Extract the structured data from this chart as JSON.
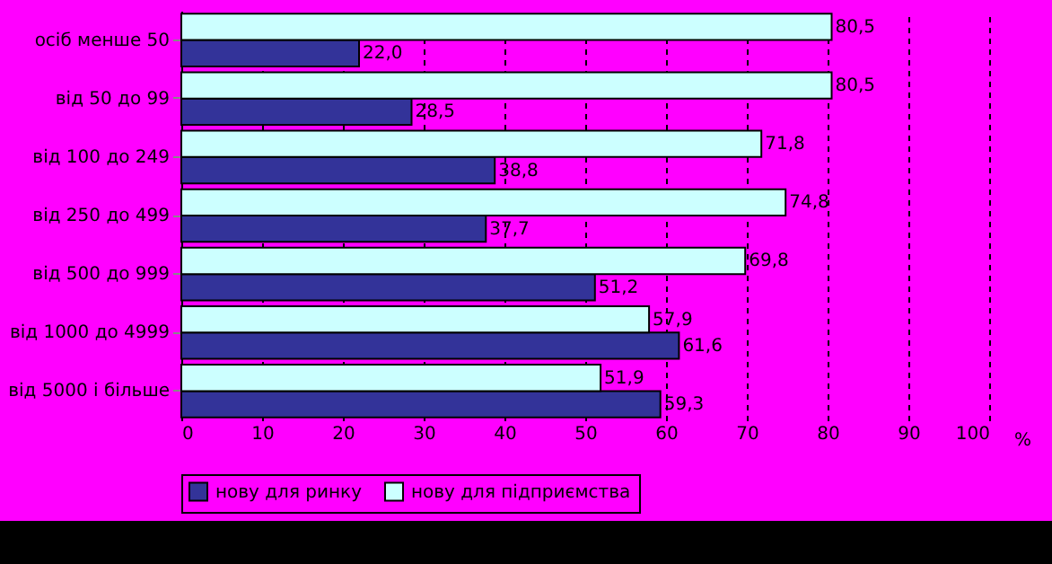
{
  "chart_data": {
    "type": "bar",
    "orientation": "horizontal",
    "xlabel": "%",
    "categories": [
      "осіб менше 50",
      "від 50 до 99",
      "від 100 до 249",
      "від 250 до 499",
      "від 500 до 999",
      "від 1000 до 4999",
      "від 5000 і більше"
    ],
    "series": [
      {
        "name": "нову для ринку",
        "color": "#333399",
        "values": [
          22.0,
          28.5,
          38.8,
          37.7,
          51.2,
          61.6,
          59.3
        ],
        "value_labels": [
          "22,0",
          "28,5",
          "38,8",
          "37,7",
          "51,2",
          "61,6",
          "59,3"
        ]
      },
      {
        "name": "нову для підприємства",
        "color": "#ccffff",
        "values": [
          80.5,
          80.5,
          71.8,
          74.8,
          69.8,
          57.9,
          51.9
        ],
        "value_labels": [
          "80,5",
          "80,5",
          "71,8",
          "74,8",
          "69,8",
          "57,9",
          "51,9"
        ]
      }
    ],
    "xlim": [
      0,
      100
    ],
    "xticks": [
      0,
      10,
      20,
      30,
      40,
      50,
      60,
      70,
      80,
      90,
      100
    ],
    "grid": "x",
    "legend": "bottom"
  }
}
